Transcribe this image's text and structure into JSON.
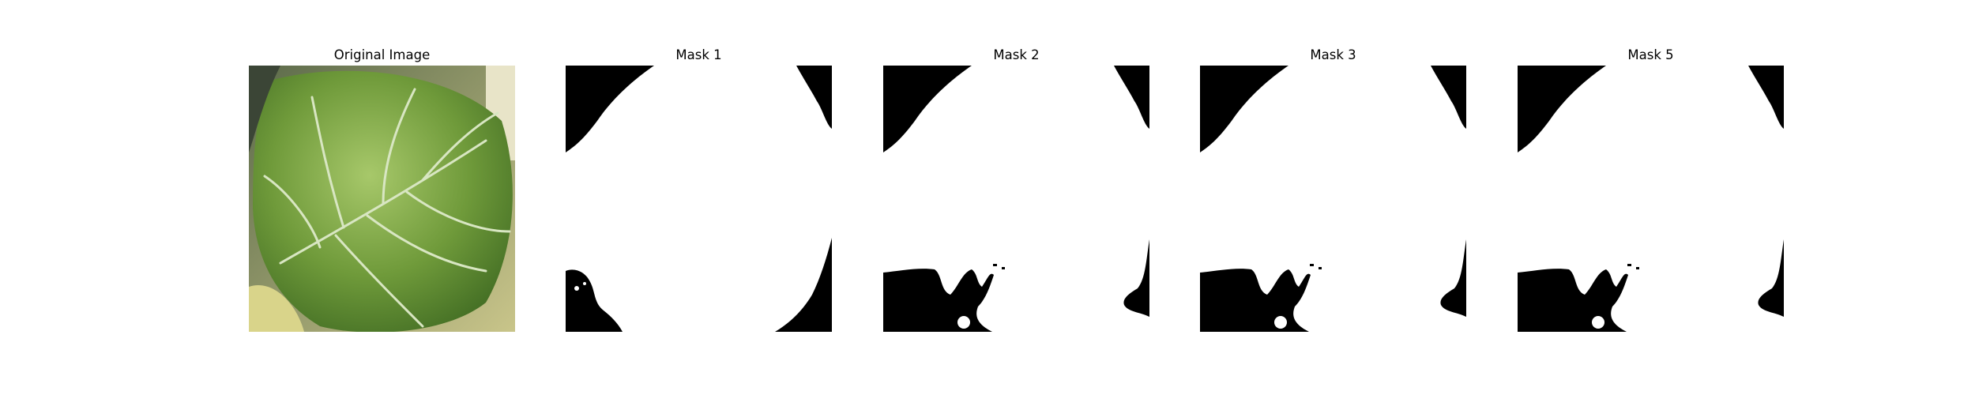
{
  "figure": {
    "panels": [
      {
        "title": "Original Image",
        "kind": "photo-leaf"
      },
      {
        "title": "Mask 1",
        "kind": "binary-mask"
      },
      {
        "title": "Mask 2",
        "kind": "binary-mask"
      },
      {
        "title": "Mask 3",
        "kind": "binary-mask"
      },
      {
        "title": "Mask 5",
        "kind": "binary-mask"
      }
    ],
    "colors": {
      "mask_foreground": "#ffffff",
      "mask_background": "#000000",
      "leaf_green": "#6f9a3a",
      "leaf_dark": "#3f6a22",
      "vein": "#d8e6c2"
    }
  }
}
